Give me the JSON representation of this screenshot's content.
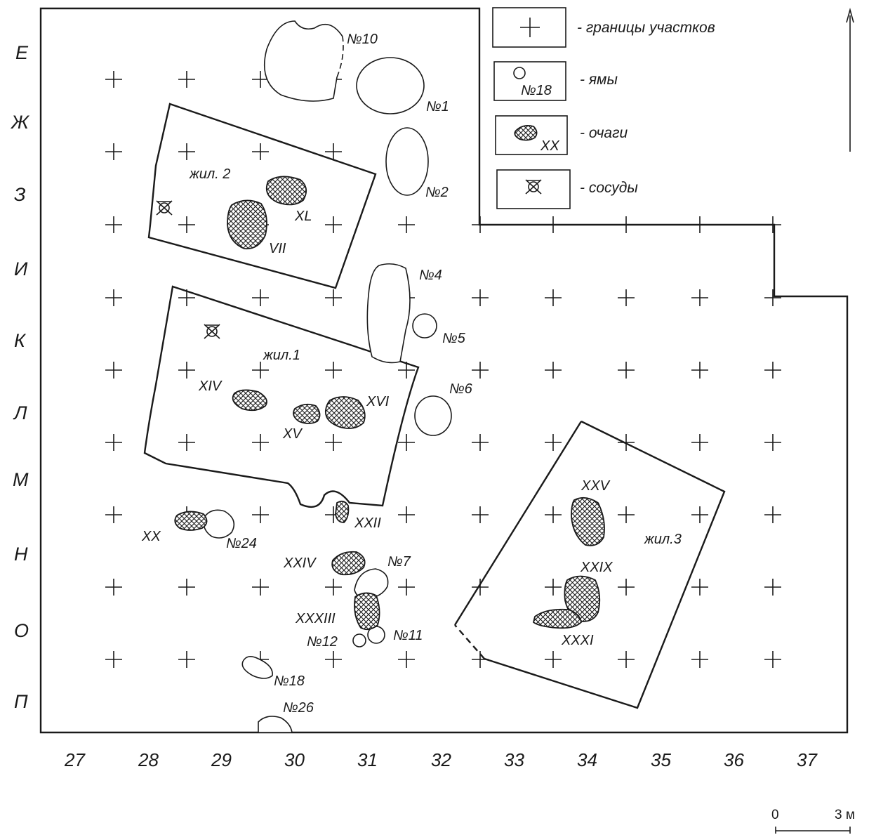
{
  "row_labels": [
    "Е",
    "Ж",
    "З",
    "И",
    "К",
    "Л",
    "М",
    "Н",
    "О",
    "П"
  ],
  "column_labels": [
    "27",
    "28",
    "29",
    "30",
    "31",
    "32",
    "33",
    "34",
    "35",
    "36",
    "37"
  ],
  "legend": {
    "boundaries": "- границы участков",
    "pits": "- ямы",
    "pits_sample": "№18",
    "hearths": "- очаги",
    "hearths_sample": "XX",
    "vessels": "- сосуды"
  },
  "dwellings": {
    "d1": "жил.1",
    "d2": "жил. 2",
    "d3": "жил.3"
  },
  "pits": {
    "p1": "№1",
    "p2": "№2",
    "p4": "№4",
    "p5": "№5",
    "p6": "№6",
    "p7": "№7",
    "p10": "№10",
    "p11": "№11",
    "p12": "№12",
    "p18": "№18",
    "p24": "№24",
    "p26": "№26"
  },
  "hearths": {
    "xl": "XL",
    "vii": "VII",
    "xiv": "XIV",
    "xv": "XV",
    "xvi": "XVI",
    "xx": "XX",
    "xxii": "XXII",
    "xxiv": "XXIV",
    "xxxiii": "XXXIII",
    "xxv": "XXV",
    "xxix": "XXIX",
    "xxxi": "XXXI"
  },
  "scale": {
    "zero": "0",
    "length": "3 м"
  },
  "colors": {
    "ink": "#1a1a1a",
    "paper": "#ffffff"
  }
}
